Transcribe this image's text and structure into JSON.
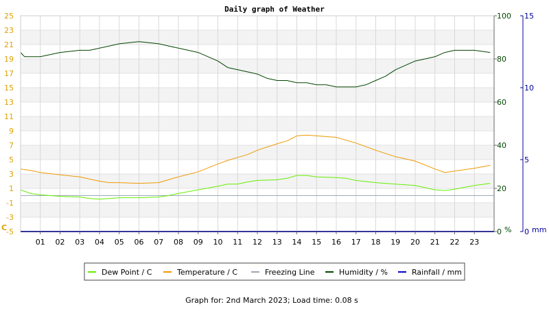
{
  "chart_data": {
    "type": "line",
    "title": "Daily graph of Weather",
    "footer": "Graph for: 2nd March 2023; Load time: 0.08 s",
    "x_ticks": [
      "01",
      "02",
      "03",
      "04",
      "05",
      "06",
      "07",
      "08",
      "09",
      "10",
      "11",
      "12",
      "13",
      "14",
      "15",
      "16",
      "17",
      "18",
      "19",
      "20",
      "21",
      "22",
      "23"
    ],
    "xlim": [
      0,
      24
    ],
    "axes": {
      "left": {
        "unit_label": "C",
        "ylim": [
          -5,
          25
        ],
        "ticks": [
          "-5",
          "-3",
          "-1",
          "1",
          "3",
          "5",
          "7",
          "9",
          "11",
          "13",
          "15",
          "17",
          "19",
          "21",
          "23",
          "25"
        ],
        "color": "#e0a000"
      },
      "humidity": {
        "unit_label": "%",
        "ylim": [
          0,
          100
        ],
        "ticks": [
          "0",
          "20",
          "40",
          "60",
          "80",
          "100"
        ],
        "color": "#004400"
      },
      "rainfall": {
        "unit_label": "mm",
        "ylim": [
          0,
          15
        ],
        "ticks": [
          "0",
          "5",
          "10",
          "15"
        ],
        "color": "#000099"
      }
    },
    "legend_position": "bottom",
    "series": [
      {
        "name": "Dew Point / C",
        "axis": "left",
        "color": "#66ee00",
        "x": [
          0,
          0.5,
          1,
          2,
          3,
          3.5,
          4,
          4.5,
          5,
          6,
          7,
          7.5,
          8,
          9,
          10,
          10.5,
          11,
          11.5,
          12,
          13,
          13.5,
          14,
          14.5,
          15,
          16,
          16.5,
          17,
          18,
          19,
          20,
          21,
          21.5,
          22,
          23,
          23.8
        ],
        "y": [
          0.8,
          0.3,
          0.1,
          -0.1,
          -0.2,
          -0.4,
          -0.5,
          -0.4,
          -0.3,
          -0.3,
          -0.2,
          0.0,
          0.3,
          0.8,
          1.3,
          1.6,
          1.6,
          1.9,
          2.1,
          2.2,
          2.4,
          2.8,
          2.8,
          2.6,
          2.5,
          2.4,
          2.1,
          1.8,
          1.6,
          1.4,
          0.8,
          0.7,
          0.9,
          1.4,
          1.7
        ]
      },
      {
        "name": "Temperature / C",
        "axis": "left",
        "color": "#ee9900",
        "x": [
          0,
          0.5,
          1,
          2,
          3,
          3.5,
          4,
          4.5,
          5,
          6,
          7,
          7.5,
          8,
          9,
          10,
          10.5,
          11,
          11.5,
          12,
          13,
          13.5,
          14,
          14.5,
          15,
          16,
          16.5,
          17,
          18,
          19,
          20,
          21,
          21.5,
          22,
          23,
          23.8
        ],
        "y": [
          3.7,
          3.5,
          3.2,
          2.9,
          2.6,
          2.3,
          2.0,
          1.8,
          1.8,
          1.7,
          1.8,
          2.2,
          2.6,
          3.3,
          4.4,
          4.9,
          5.3,
          5.7,
          6.3,
          7.2,
          7.6,
          8.3,
          8.4,
          8.3,
          8.1,
          7.7,
          7.3,
          6.3,
          5.4,
          4.8,
          3.7,
          3.2,
          3.4,
          3.8,
          4.2
        ]
      },
      {
        "name": "Freezing Line",
        "axis": "left",
        "color": "#99aabb",
        "x": [
          0,
          24
        ],
        "y": [
          0,
          0
        ]
      },
      {
        "name": "Humidity / %",
        "axis": "humidity",
        "color": "#004400",
        "x": [
          0,
          0.2,
          1,
          2,
          3,
          3.5,
          4,
          4.5,
          5,
          6,
          7,
          7.5,
          8,
          8.5,
          9,
          9.5,
          10,
          10.5,
          11,
          11.5,
          12,
          12.5,
          13,
          13.5,
          14,
          14.5,
          15,
          15.5,
          16,
          16.5,
          17,
          17.5,
          18,
          18.5,
          19,
          19.5,
          20,
          20.5,
          21,
          21.5,
          22,
          23,
          23.8
        ],
        "y": [
          83,
          81,
          81,
          83,
          84,
          84,
          85,
          86,
          87,
          88,
          87,
          86,
          85,
          84,
          83,
          81,
          79,
          76,
          75,
          74,
          73,
          71,
          70,
          70,
          69,
          69,
          68,
          68,
          67,
          67,
          67,
          68,
          70,
          72,
          75,
          77,
          79,
          80,
          81,
          83,
          84,
          84,
          83
        ]
      },
      {
        "name": "Rainfall / mm",
        "axis": "rainfall",
        "color": "#0000cc",
        "x": [
          0,
          24
        ],
        "y": [
          0,
          0
        ]
      }
    ]
  }
}
